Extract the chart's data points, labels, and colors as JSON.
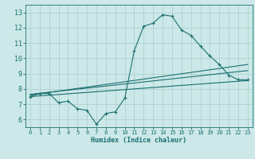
{
  "xlabel": "Humidex (Indice chaleur)",
  "bg_color": "#cce8e8",
  "grid_color": "#aacccc",
  "line_color": "#1a7070",
  "xlim": [
    -0.5,
    23.5
  ],
  "ylim": [
    5.5,
    13.5
  ],
  "xticks": [
    0,
    1,
    2,
    3,
    4,
    5,
    6,
    7,
    8,
    9,
    10,
    11,
    12,
    13,
    14,
    15,
    16,
    17,
    18,
    19,
    20,
    21,
    22,
    23
  ],
  "yticks": [
    6,
    7,
    8,
    9,
    10,
    11,
    12,
    13
  ],
  "main_x": [
    0,
    1,
    2,
    3,
    4,
    5,
    6,
    7,
    8,
    9,
    10,
    11,
    12,
    13,
    14,
    15,
    16,
    17,
    18,
    19,
    20,
    21,
    22,
    23
  ],
  "main_y": [
    7.5,
    7.7,
    7.7,
    7.1,
    7.2,
    6.7,
    6.6,
    5.7,
    6.4,
    6.5,
    7.4,
    10.5,
    12.1,
    12.3,
    12.85,
    12.75,
    11.85,
    11.5,
    10.8,
    10.15,
    9.6,
    8.9,
    8.6,
    8.6
  ],
  "trend1_x": [
    0,
    23
  ],
  "trend1_y": [
    7.6,
    9.6
  ],
  "trend2_x": [
    0,
    23
  ],
  "trend2_y": [
    7.5,
    8.55
  ],
  "trend3_x": [
    0,
    23
  ],
  "trend3_y": [
    7.65,
    9.2
  ]
}
